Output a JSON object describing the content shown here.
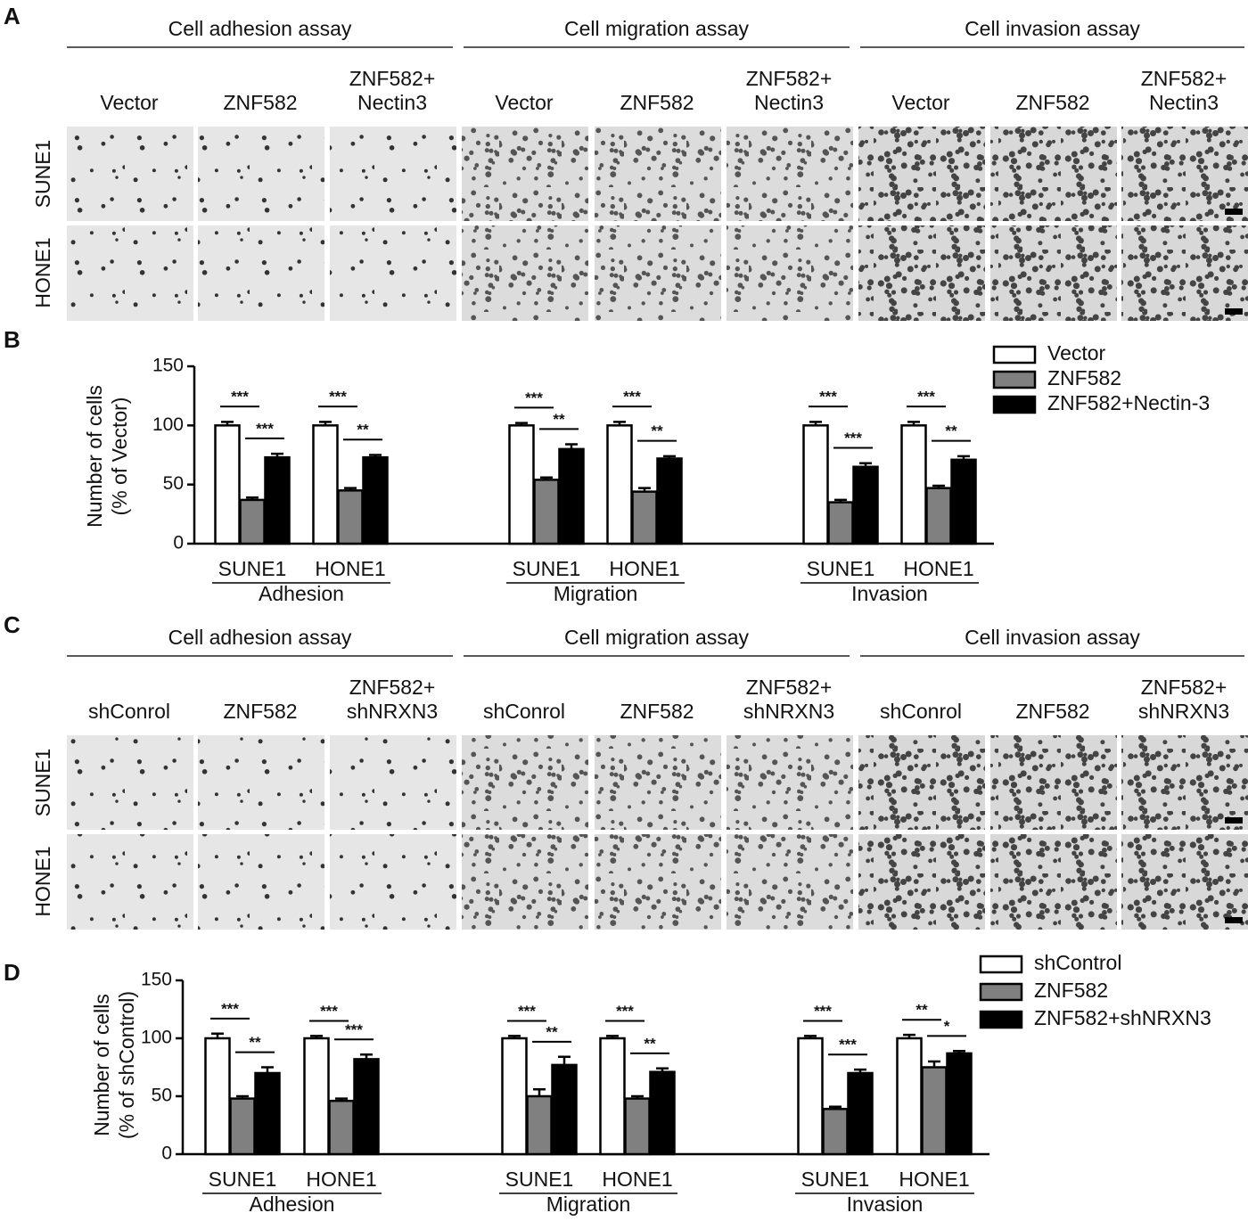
{
  "panel_a": {
    "label": "A",
    "assays": [
      {
        "title": "Cell adhesion assay",
        "conditions": [
          [
            "Vector"
          ],
          [
            "ZNF582"
          ],
          [
            "ZNF582+",
            "Nectin3"
          ]
        ]
      },
      {
        "title": "Cell migration assay",
        "conditions": [
          [
            "Vector"
          ],
          [
            "ZNF582"
          ],
          [
            "ZNF582+",
            "Nectin3"
          ]
        ]
      },
      {
        "title": "Cell invasion assay",
        "conditions": [
          [
            "Vector"
          ],
          [
            "ZNF582"
          ],
          [
            "ZNF582+",
            "Nectin3"
          ]
        ]
      }
    ],
    "cell_lines": [
      "SUNE1",
      "HONE1"
    ]
  },
  "panel_c": {
    "label": "C",
    "assays": [
      {
        "title": "Cell adhesion assay",
        "conditions": [
          [
            "shConrol"
          ],
          [
            "ZNF582"
          ],
          [
            "ZNF582+",
            "shNRXN3"
          ]
        ]
      },
      {
        "title": "Cell migration assay",
        "conditions": [
          [
            "shConrol"
          ],
          [
            "ZNF582"
          ],
          [
            "ZNF582+",
            "shNRXN3"
          ]
        ]
      },
      {
        "title": "Cell invasion assay",
        "conditions": [
          [
            "shConrol"
          ],
          [
            "ZNF582"
          ],
          [
            "ZNF582+",
            "shNRXN3"
          ]
        ]
      }
    ],
    "cell_lines": [
      "SUNE1",
      "HONE1"
    ]
  },
  "chart_data": [
    {
      "type": "bar",
      "panel_label": "B",
      "ylabel": [
        "Number of cells",
        "(% of Vector)"
      ],
      "categories": [
        "SUNE1",
        "HONE1",
        "SUNE1",
        "HONE1",
        "SUNE1",
        "HONE1"
      ],
      "groups": [
        "Adhesion",
        "Migration",
        "Invasion"
      ],
      "series": [
        {
          "name": "Vector",
          "color": "#ffffff",
          "values": [
            100,
            100,
            100,
            100,
            100,
            100
          ],
          "errors": [
            3,
            3,
            2,
            3,
            3,
            3
          ]
        },
        {
          "name": "ZNF582",
          "color": "#808080",
          "values": [
            37,
            45,
            54,
            44,
            35,
            47
          ],
          "errors": [
            2,
            2,
            2,
            3,
            2,
            2
          ]
        },
        {
          "name": "ZNF582+Nectin-3",
          "color": "#000000",
          "values": [
            73,
            73,
            80,
            72,
            65,
            71
          ],
          "errors": [
            3,
            2,
            4,
            2,
            3,
            3
          ]
        }
      ],
      "significance": [
        [
          "***",
          "***"
        ],
        [
          "***",
          "**"
        ],
        [
          "***",
          "**"
        ],
        [
          "***",
          "**"
        ],
        [
          "***",
          "***"
        ],
        [
          "***",
          "**"
        ]
      ],
      "ylim": [
        0,
        150
      ],
      "yticks": [
        0,
        50,
        100,
        150
      ]
    },
    {
      "type": "bar",
      "panel_label": "D",
      "ylabel": [
        "Number of cells",
        "(% of shControl)"
      ],
      "categories": [
        "SUNE1",
        "HONE1",
        "SUNE1",
        "HONE1",
        "SUNE1",
        "HONE1"
      ],
      "groups": [
        "Adhesion",
        "Migration",
        "Invasion"
      ],
      "series": [
        {
          "name": "shControl",
          "color": "#ffffff",
          "values": [
            100,
            100,
            100,
            100,
            100,
            100
          ],
          "errors": [
            4,
            2,
            2,
            2,
            2,
            3
          ]
        },
        {
          "name": "ZNF582",
          "color": "#808080",
          "values": [
            48,
            46,
            50,
            48,
            39,
            75
          ],
          "errors": [
            2,
            2,
            6,
            2,
            2,
            5
          ]
        },
        {
          "name": "ZNF582+shNRXN3",
          "color": "#000000",
          "values": [
            70,
            82,
            77,
            71,
            70,
            87
          ],
          "errors": [
            5,
            4,
            7,
            3,
            3,
            2
          ]
        }
      ],
      "significance": [
        [
          "***",
          "**"
        ],
        [
          "***",
          "***"
        ],
        [
          "***",
          "**"
        ],
        [
          "***",
          "**"
        ],
        [
          "***",
          "***"
        ],
        [
          "**",
          "*"
        ]
      ],
      "ylim": [
        0,
        150
      ],
      "yticks": [
        0,
        50,
        100,
        150
      ]
    }
  ]
}
